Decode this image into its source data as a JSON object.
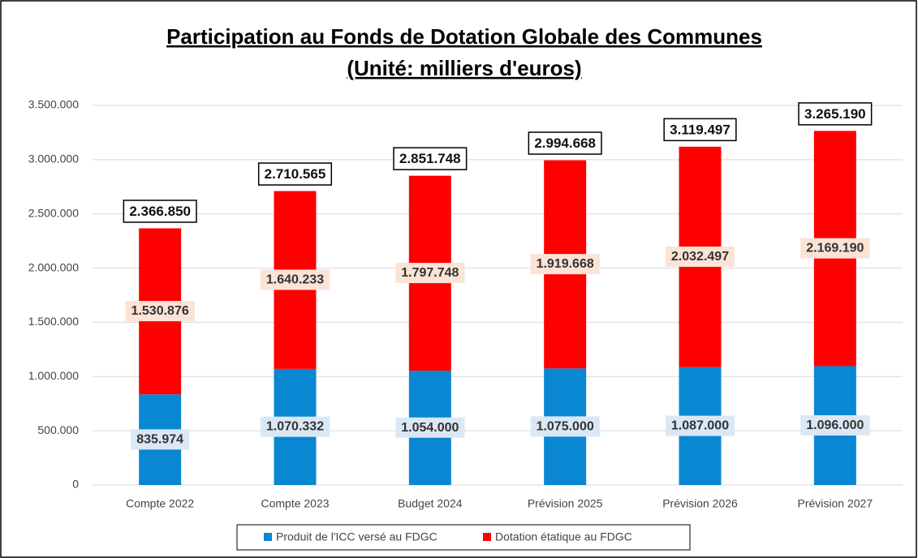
{
  "chart_data": {
    "type": "stacked_bar",
    "title": "Participation au Fonds de Dotation Globale des Communes",
    "subtitle": "(Unité: milliers d'euros)",
    "categories": [
      "Compte 2022",
      "Compte 2023",
      "Budget 2024",
      "Prévision 2025",
      "Prévision 2026",
      "Prévision 2027"
    ],
    "series": [
      {
        "name": "Produit de l'ICC versé au FDGC",
        "color": "#0a87d2",
        "label_bg": "#dae8f5",
        "values": [
          835974,
          1070332,
          1054000,
          1075000,
          1087000,
          1096000
        ],
        "value_labels": [
          "835.974",
          "1.070.332",
          "1.054.000",
          "1.075.000",
          "1.087.000",
          "1.096.000"
        ]
      },
      {
        "name": "Dotation étatique au FDGC",
        "color": "#ff0000",
        "label_bg": "#fbe3d6",
        "values": [
          1530876,
          1640233,
          1797748,
          1919668,
          2032497,
          2169190
        ],
        "value_labels": [
          "1.530.876",
          "1.640.233",
          "1.797.748",
          "1.919.668",
          "2.032.497",
          "2.169.190"
        ]
      }
    ],
    "totals": {
      "values": [
        2366850,
        2710565,
        2851748,
        2994668,
        3119497,
        3265190
      ],
      "value_labels": [
        "2.366.850",
        "2.710.565",
        "2.851.748",
        "2.994.668",
        "3.119.497",
        "3.265.190"
      ]
    },
    "ylim": [
      0,
      3500000
    ],
    "yticks": [
      0,
      {
        "value": 500000,
        "label": "500.000"
      },
      {
        "value": 1000000,
        "label": "1.000.000"
      },
      {
        "value": 1500000,
        "label": "1.500.000"
      },
      {
        "value": 2000000,
        "label": "2.000.000"
      },
      {
        "value": 2500000,
        "label": "2.500.000"
      },
      {
        "value": 3000000,
        "label": "3.000.000"
      },
      {
        "value": 3500000,
        "label": "3.500.000"
      }
    ],
    "grid": true,
    "legend": "bottom"
  }
}
